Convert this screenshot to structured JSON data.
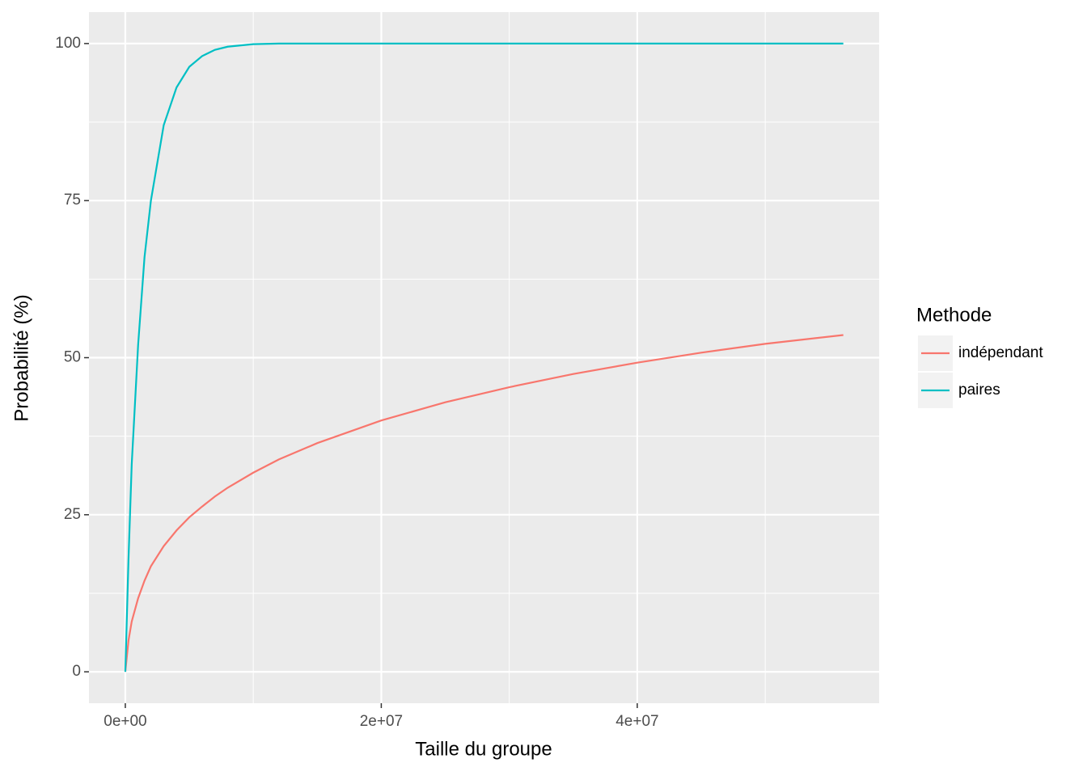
{
  "chart_data": {
    "type": "line",
    "x_label": "Taille du groupe",
    "y_label": "Probabilité (%)",
    "legend_title": "Methode",
    "legend": "right",
    "grid": true,
    "x": [
      0,
      250000,
      500000,
      1000000,
      1500000,
      2000000,
      3000000,
      4000000,
      5000000,
      6000000,
      7000000,
      8000000,
      10000000,
      12000000,
      15000000,
      20000000,
      25000000,
      30000000,
      35000000,
      40000000,
      45000000,
      50000000,
      56100000
    ],
    "series": [
      {
        "name": "indépendant",
        "color": "#F8766D",
        "values": [
          0,
          5,
          8,
          11.7,
          14.5,
          16.8,
          20,
          22.5,
          24.6,
          26.3,
          27.9,
          29.3,
          31.7,
          33.8,
          36.4,
          40,
          42.9,
          45.3,
          47.4,
          49.2,
          50.8,
          52.2,
          53.6
        ]
      },
      {
        "name": "paires",
        "color": "#00BFC4",
        "values": [
          0,
          18,
          33,
          52,
          66,
          75,
          87,
          93,
          96.3,
          98,
          99,
          99.5,
          99.9,
          100,
          100,
          100,
          100,
          100,
          100,
          100,
          100,
          100,
          100
        ]
      }
    ],
    "xlim": [
      -2840000,
      58900000
    ],
    "ylim": [
      -5,
      105
    ],
    "xticks": [
      {
        "value": 0,
        "label": "0e+00"
      },
      {
        "value": 20000000,
        "label": "2e+07"
      },
      {
        "value": 40000000,
        "label": "4e+07"
      }
    ],
    "xminor": [
      10000000,
      30000000,
      50000000
    ],
    "yticks": [
      0,
      25,
      50,
      75,
      100
    ],
    "yminor": [
      12.5,
      37.5,
      62.5,
      87.5
    ]
  }
}
